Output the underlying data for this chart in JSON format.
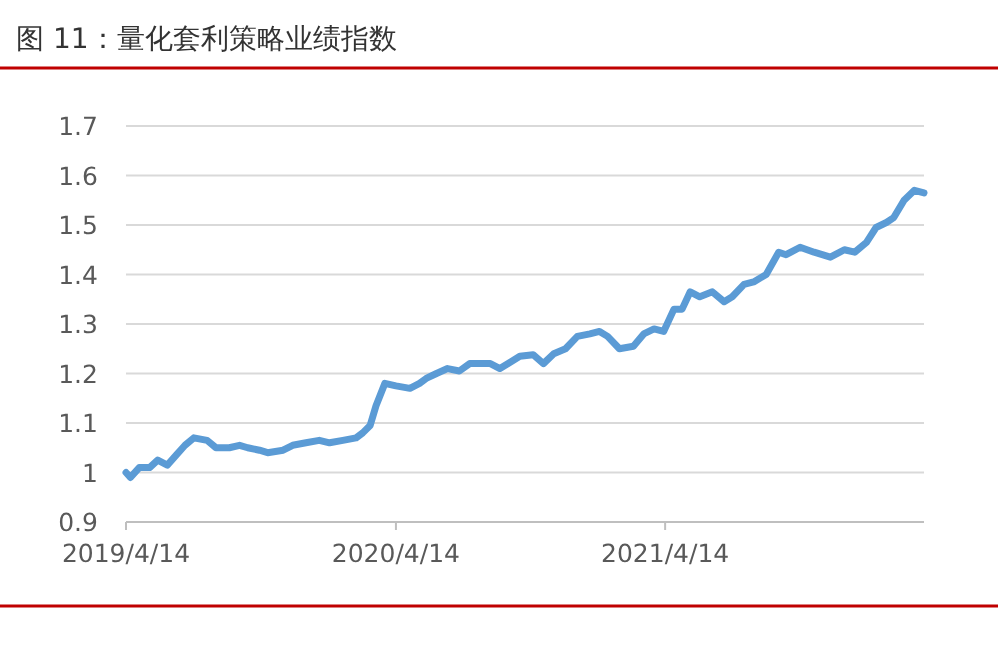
{
  "chart_data": {
    "type": "line",
    "title": "图 11：量化套利策略业绩指数",
    "x": [
      "2019-04-14",
      "2019-04-20",
      "2019-05-02",
      "2019-05-16",
      "2019-05-27",
      "2019-06-09",
      "2019-06-21",
      "2019-07-03",
      "2019-07-15",
      "2019-08-02",
      "2019-08-14",
      "2019-09-01",
      "2019-09-15",
      "2019-09-26",
      "2019-10-12",
      "2019-10-23",
      "2019-11-13",
      "2019-11-26",
      "2019-12-14",
      "2020-01-01",
      "2020-01-15",
      "2020-02-02",
      "2020-02-20",
      "2020-02-29",
      "2020-03-10",
      "2020-03-18",
      "2020-03-30",
      "2020-04-14",
      "2020-05-03",
      "2020-05-16",
      "2020-05-25",
      "2020-06-08",
      "2020-06-23",
      "2020-07-09",
      "2020-07-23",
      "2020-08-20",
      "2020-09-02",
      "2020-09-29",
      "2020-10-17",
      "2020-10-31",
      "2020-11-14",
      "2020-11-30",
      "2020-12-16",
      "2021-01-02",
      "2021-01-15",
      "2021-01-26",
      "2021-02-11",
      "2021-03-02",
      "2021-03-16",
      "2021-03-30",
      "2021-04-12",
      "2021-04-26",
      "2021-05-07",
      "2021-05-18",
      "2021-05-31",
      "2021-06-17",
      "2021-07-03",
      "2021-07-14",
      "2021-07-30",
      "2021-08-12",
      "2021-08-29",
      "2021-09-15",
      "2021-09-25",
      "2021-10-14",
      "2021-11-02",
      "2021-11-24",
      "2021-12-13",
      "2021-12-27",
      "2022-01-12",
      "2022-01-25",
      "2022-02-08",
      "2022-02-18",
      "2022-03-04",
      "2022-03-18",
      "2022-03-31"
    ],
    "series": [
      {
        "color": "#5b9bd5",
        "values": [
          1.0,
          0.99,
          1.01,
          1.01,
          1.025,
          1.015,
          1.035,
          1.055,
          1.07,
          1.065,
          1.05,
          1.05,
          1.055,
          1.05,
          1.045,
          1.04,
          1.045,
          1.055,
          1.06,
          1.065,
          1.06,
          1.065,
          1.07,
          1.08,
          1.095,
          1.135,
          1.18,
          1.175,
          1.17,
          1.18,
          1.19,
          1.2,
          1.21,
          1.205,
          1.22,
          1.22,
          1.21,
          1.235,
          1.238,
          1.22,
          1.24,
          1.25,
          1.275,
          1.28,
          1.285,
          1.275,
          1.25,
          1.255,
          1.28,
          1.29,
          1.285,
          1.33,
          1.33,
          1.365,
          1.355,
          1.365,
          1.345,
          1.355,
          1.38,
          1.385,
          1.4,
          1.445,
          1.44,
          1.455,
          1.445,
          1.435,
          1.45,
          1.445,
          1.465,
          1.495,
          1.505,
          1.515,
          1.55,
          1.57,
          1.565
        ]
      }
    ],
    "xlim": [
      "2019-04-14",
      "2022-03-31"
    ],
    "xticks": [
      {
        "value": "2019-04-14",
        "label": "2019/4/14"
      },
      {
        "value": "2020-04-14",
        "label": "2020/4/14"
      },
      {
        "value": "2021-04-14",
        "label": "2021/4/14"
      }
    ],
    "ylim": [
      0.9,
      1.7
    ],
    "yticks": [
      0.9,
      1,
      1.1,
      1.2,
      1.3,
      1.4,
      1.5,
      1.6,
      1.7
    ],
    "grid": "y"
  }
}
